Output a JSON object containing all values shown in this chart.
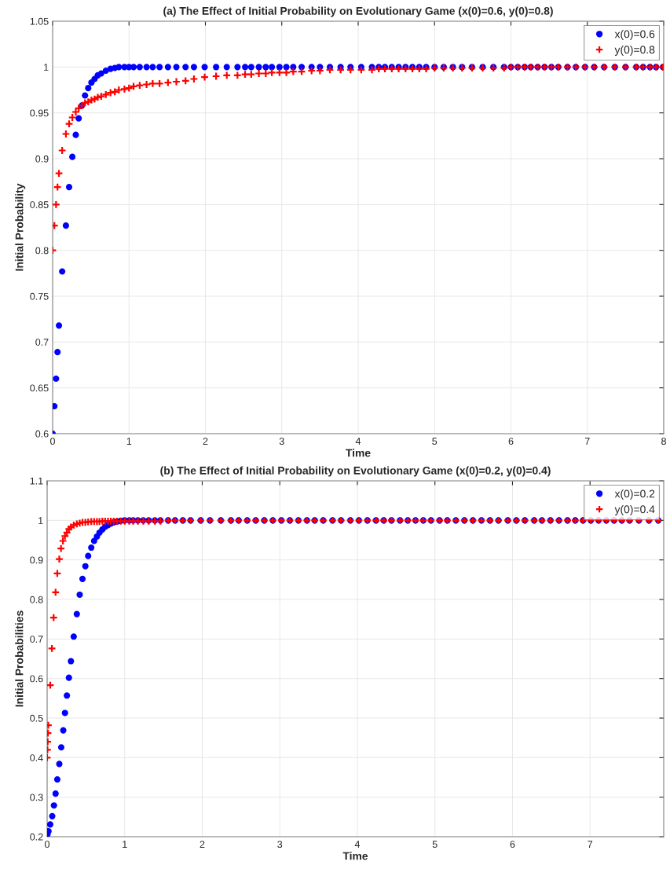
{
  "chart_data": [
    {
      "type": "scatter",
      "title": "(a) The Effect of Initial Probability on Evolutionary Game (x(0)=0.6, y(0)=0.8)",
      "xlabel": "Time",
      "ylabel": "Initial Probability",
      "xlim": [
        0,
        8
      ],
      "xticks": [
        0,
        1,
        2,
        3,
        4,
        5,
        6,
        7,
        8
      ],
      "ylim": [
        0.6,
        1.05
      ],
      "yticks": [
        0.6,
        0.65,
        0.7,
        0.75,
        0.8,
        0.85,
        0.9,
        0.95,
        1,
        1.05
      ],
      "grid": true,
      "legend": "top right",
      "series": [
        {
          "name": "x(0)=0.6",
          "color": "#0000ff",
          "marker": "circle",
          "x": [
            0,
            0.023,
            0.045,
            0.064,
            0.083,
            0.125,
            0.174,
            0.216,
            0.258,
            0.303,
            0.341,
            0.383,
            0.424,
            0.466,
            0.508,
            0.549,
            0.591,
            0.636,
            0.697,
            0.758,
            0.814,
            0.867,
            0.94,
            1.0,
            1.06,
            1.14,
            1.23,
            1.31,
            1.4,
            1.51,
            1.62,
            1.74,
            1.85,
            1.99,
            2.14,
            2.28,
            2.42,
            2.52,
            2.6,
            2.7,
            2.79,
            2.87,
            2.97,
            3.06,
            3.15,
            3.26,
            3.39,
            3.5,
            3.63,
            3.77,
            3.9,
            4.04,
            4.18,
            4.27,
            4.35,
            4.44,
            4.53,
            4.62,
            4.71,
            4.8,
            4.89,
            5.0,
            5.12,
            5.24,
            5.36,
            5.49,
            5.63,
            5.77,
            5.91,
            6.0,
            6.09,
            6.18,
            6.26,
            6.35,
            6.44,
            6.53,
            6.62,
            6.74,
            6.85,
            6.97,
            7.09,
            7.22,
            7.36,
            7.5,
            7.64,
            7.73,
            7.82,
            7.9,
            7.99
          ],
          "values": [
            0.6,
            0.63,
            0.66,
            0.689,
            0.718,
            0.777,
            0.827,
            0.869,
            0.902,
            0.926,
            0.944,
            0.958,
            0.969,
            0.977,
            0.983,
            0.987,
            0.991,
            0.993,
            0.996,
            0.998,
            0.999,
            1,
            1,
            1,
            1,
            1,
            1,
            1,
            1,
            1,
            1,
            1,
            1,
            1,
            1,
            1,
            1,
            1,
            1,
            1,
            1,
            1,
            1,
            1,
            1,
            1,
            1,
            1,
            1,
            1,
            1,
            1,
            1,
            1,
            1,
            1,
            1,
            1,
            1,
            1,
            1,
            1,
            1,
            1,
            1,
            1,
            1,
            1,
            1,
            1,
            1,
            1,
            1,
            1,
            1,
            1,
            1,
            1,
            1,
            1,
            1,
            1,
            1,
            1,
            1,
            1,
            1,
            1,
            1
          ]
        },
        {
          "name": "y(0)=0.8",
          "color": "#ff0000",
          "marker": "cross",
          "x": [
            0,
            0.023,
            0.045,
            0.064,
            0.083,
            0.125,
            0.174,
            0.216,
            0.258,
            0.303,
            0.341,
            0.383,
            0.424,
            0.466,
            0.508,
            0.549,
            0.591,
            0.636,
            0.697,
            0.758,
            0.814,
            0.867,
            0.94,
            1.0,
            1.06,
            1.14,
            1.23,
            1.31,
            1.4,
            1.51,
            1.62,
            1.74,
            1.85,
            1.99,
            2.14,
            2.28,
            2.42,
            2.52,
            2.6,
            2.7,
            2.79,
            2.87,
            2.97,
            3.06,
            3.15,
            3.26,
            3.39,
            3.5,
            3.63,
            3.77,
            3.9,
            4.04,
            4.18,
            4.27,
            4.35,
            4.44,
            4.53,
            4.62,
            4.71,
            4.8,
            4.89,
            5.0,
            5.12,
            5.24,
            5.36,
            5.49,
            5.63,
            5.77,
            5.91,
            6.0,
            6.09,
            6.18,
            6.26,
            6.35,
            6.44,
            6.53,
            6.62,
            6.74,
            6.85,
            6.97,
            7.09,
            7.22,
            7.36,
            7.5,
            7.64,
            7.73,
            7.82,
            7.9,
            7.99
          ],
          "values": [
            0.8,
            0.827,
            0.85,
            0.869,
            0.884,
            0.909,
            0.927,
            0.938,
            0.945,
            0.951,
            0.955,
            0.958,
            0.961,
            0.962,
            0.964,
            0.965,
            0.967,
            0.968,
            0.97,
            0.972,
            0.973,
            0.975,
            0.976,
            0.977,
            0.979,
            0.98,
            0.981,
            0.982,
            0.982,
            0.983,
            0.984,
            0.985,
            0.987,
            0.989,
            0.99,
            0.991,
            0.991,
            0.992,
            0.992,
            0.993,
            0.993,
            0.994,
            0.994,
            0.994,
            0.995,
            0.995,
            0.996,
            0.996,
            0.997,
            0.997,
            0.997,
            0.997,
            0.997,
            0.998,
            0.998,
            0.998,
            0.998,
            0.998,
            0.998,
            0.998,
            0.998,
            0.999,
            0.999,
            0.999,
            0.999,
            0.999,
            0.999,
            0.999,
            0.999,
            1,
            1,
            1,
            1,
            1,
            1,
            1,
            1,
            1,
            1,
            1,
            1,
            1,
            1,
            1,
            1,
            1,
            1,
            1,
            1
          ]
        }
      ]
    },
    {
      "type": "scatter",
      "title": "(b) The Effect of Initial Probability on Evolutionary Game (x(0)=0.2, y(0)=0.4)",
      "xlabel": "Time",
      "ylabel": "Initial Probabilities",
      "xlim": [
        0,
        7.95
      ],
      "xticks": [
        0,
        1,
        2,
        3,
        4,
        5,
        6,
        7
      ],
      "ylim": [
        0.2,
        1.1
      ],
      "yticks": [
        0.2,
        0.3,
        0.4,
        0.5,
        0.6,
        0.7,
        0.8,
        0.9,
        1,
        1.1
      ],
      "grid": true,
      "legend": "top right",
      "series": [
        {
          "name": "x(0)=0.2",
          "color": "#0000ff",
          "marker": "circle",
          "x": [
            0.005,
            0.018,
            0.04,
            0.066,
            0.088,
            0.109,
            0.131,
            0.157,
            0.182,
            0.208,
            0.23,
            0.255,
            0.281,
            0.307,
            0.343,
            0.383,
            0.42,
            0.456,
            0.493,
            0.529,
            0.569,
            0.606,
            0.642,
            0.675,
            0.712,
            0.748,
            0.785,
            0.821,
            0.858,
            0.901,
            0.949,
            1.0,
            1.06,
            1.11,
            1.17,
            1.24,
            1.31,
            1.39,
            1.46,
            1.56,
            1.65,
            1.75,
            1.85,
            1.98,
            2.1,
            2.24,
            2.37,
            2.47,
            2.58,
            2.69,
            2.8,
            2.91,
            3.02,
            3.13,
            3.24,
            3.35,
            3.45,
            3.56,
            3.68,
            3.79,
            3.91,
            4.02,
            4.13,
            4.24,
            4.34,
            4.44,
            4.55,
            4.65,
            4.75,
            4.85,
            4.95,
            5.06,
            5.16,
            5.27,
            5.38,
            5.49,
            5.6,
            5.71,
            5.82,
            5.94,
            6.05,
            6.16,
            6.28,
            6.38,
            6.49,
            6.6,
            6.71,
            6.81,
            6.91,
            7.01,
            7.11,
            7.21,
            7.31,
            7.41,
            7.51,
            7.63,
            7.76,
            7.88
          ],
          "values": [
            0.206,
            0.214,
            0.231,
            0.252,
            0.279,
            0.309,
            0.345,
            0.384,
            0.426,
            0.469,
            0.513,
            0.557,
            0.602,
            0.644,
            0.706,
            0.763,
            0.812,
            0.852,
            0.884,
            0.91,
            0.931,
            0.948,
            0.959,
            0.969,
            0.977,
            0.984,
            0.988,
            0.992,
            0.995,
            0.997,
            0.999,
            1,
            1,
            1,
            1,
            1,
            1,
            1,
            1,
            1,
            1,
            1,
            1,
            1,
            1,
            1,
            1,
            1,
            1,
            1,
            1,
            1,
            1,
            1,
            1,
            1,
            1,
            1,
            1,
            1,
            1,
            1,
            1,
            1,
            1,
            1,
            1,
            1,
            1,
            1,
            1,
            1,
            1,
            1,
            1,
            1,
            1,
            1,
            1,
            1,
            1,
            1,
            1,
            1,
            1,
            1,
            1,
            1,
            1,
            1,
            1,
            1,
            1,
            1,
            1,
            1,
            1,
            1
          ]
        },
        {
          "name": "y(0)=0.4",
          "color": "#ff0000",
          "marker": "cross",
          "x": [
            0,
            0.004,
            0.007,
            0.011,
            0.015,
            0.04,
            0.062,
            0.084,
            0.109,
            0.131,
            0.157,
            0.179,
            0.204,
            0.23,
            0.255,
            0.281,
            0.307,
            0.343,
            0.383,
            0.42,
            0.456,
            0.493,
            0.529,
            0.569,
            0.606,
            0.642,
            0.675,
            0.712,
            0.748,
            0.785,
            0.821,
            0.858,
            0.901,
            0.949,
            1.0,
            1.06,
            1.11,
            1.17,
            1.24,
            1.31,
            1.39,
            1.46,
            1.56,
            1.65,
            1.75,
            1.85,
            1.98,
            2.1,
            2.24,
            2.37,
            2.47,
            2.58,
            2.69,
            2.8,
            2.91,
            3.02,
            3.13,
            3.24,
            3.35,
            3.45,
            3.56,
            3.68,
            3.79,
            3.91,
            4.02,
            4.13,
            4.24,
            4.34,
            4.44,
            4.55,
            4.65,
            4.75,
            4.85,
            4.95,
            5.06,
            5.16,
            5.27,
            5.38,
            5.49,
            5.6,
            5.71,
            5.82,
            5.94,
            6.05,
            6.16,
            6.28,
            6.38,
            6.49,
            6.6,
            6.71,
            6.81,
            6.91,
            7.01,
            7.11,
            7.21,
            7.31,
            7.41,
            7.51,
            7.63,
            7.76,
            7.88
          ],
          "values": [
            0.4,
            0.42,
            0.44,
            0.462,
            0.482,
            0.583,
            0.676,
            0.754,
            0.818,
            0.866,
            0.902,
            0.929,
            0.948,
            0.96,
            0.969,
            0.978,
            0.983,
            0.988,
            0.991,
            0.993,
            0.995,
            0.995,
            0.996,
            0.997,
            0.997,
            0.997,
            0.997,
            0.998,
            0.998,
            0.998,
            0.998,
            0.998,
            0.998,
            0.998,
            0.998,
            0.998,
            0.998,
            0.998,
            0.998,
            0.998,
            0.998,
            0.998,
            1,
            1,
            1,
            1,
            1,
            1,
            1,
            1,
            1,
            1,
            1,
            1,
            1,
            1,
            1,
            1,
            1,
            1,
            1,
            1,
            1,
            1,
            1,
            1,
            1,
            1,
            1,
            1,
            1,
            1,
            1,
            1,
            1,
            1,
            1,
            1,
            1,
            1,
            1,
            1,
            1,
            1,
            1,
            1,
            1,
            1,
            1,
            1,
            1,
            1,
            1,
            1,
            1,
            1,
            1,
            1,
            1,
            1,
            1
          ]
        }
      ]
    }
  ]
}
